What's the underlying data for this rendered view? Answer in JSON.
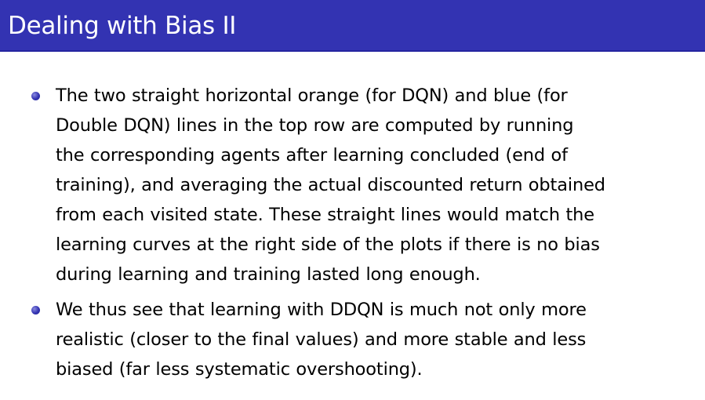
{
  "slide": {
    "title": "Dealing with Bias II",
    "bullets": [
      {
        "lines": [
          "The two straight horizontal orange (for DQN) and blue (for",
          "Double DQN) lines in the top row are computed by running",
          "the corresponding agents after learning concluded (end of",
          "training), and averaging the actual discounted return obtained",
          "from each visited state. These straight lines would match the",
          "learning curves at the right side of the plots if there is no bias",
          "during learning and training lasted long enough."
        ]
      },
      {
        "lines": [
          "We thus see that learning with DDQN is much not only more",
          "realistic (closer to the final values) and more stable and less",
          "biased (far less systematic overshooting)."
        ]
      }
    ]
  },
  "colors": {
    "title_bar": "#3333b2",
    "title_text": "#ffffff",
    "bullet": "#3333b2",
    "body_text": "#000000"
  },
  "icons": {
    "bullet": "ball-bullet-icon"
  }
}
